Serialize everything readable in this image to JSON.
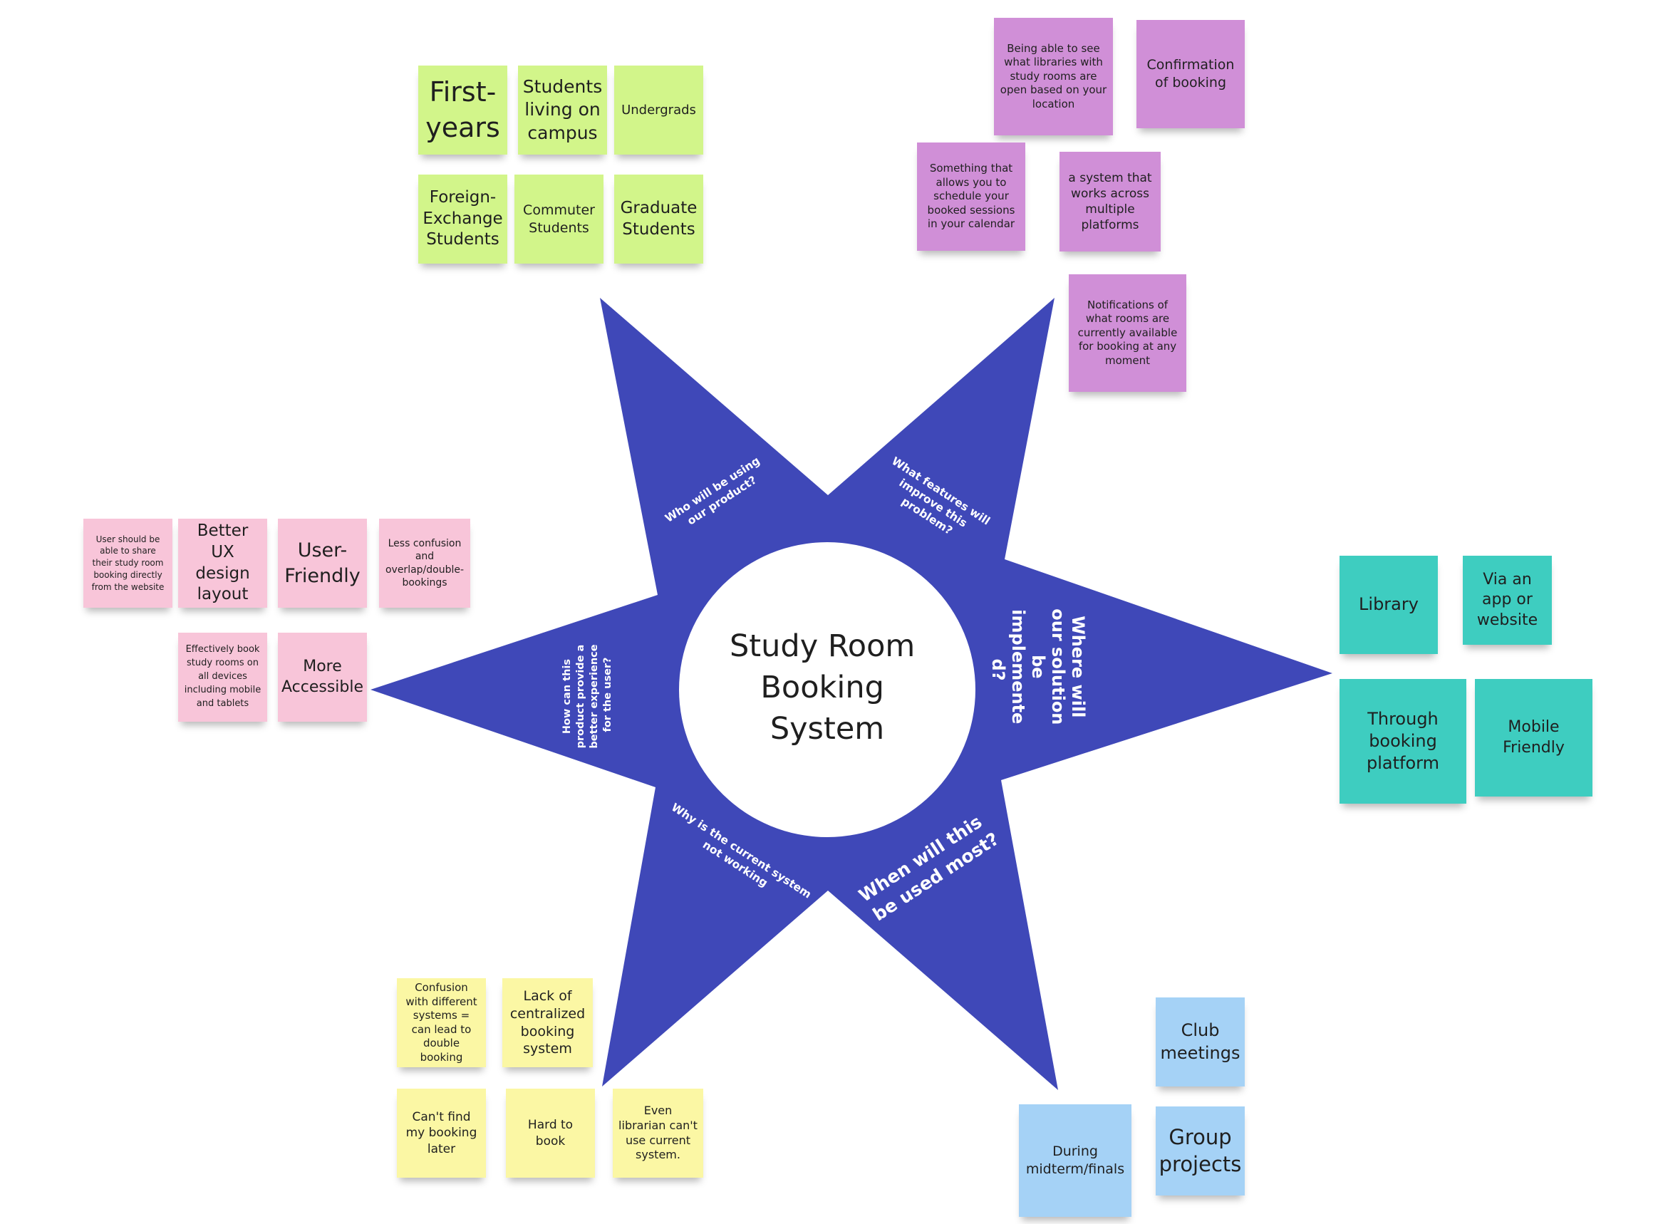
{
  "diagram": {
    "center_title": [
      "Study Room",
      "Booking",
      "System"
    ],
    "star_color": "#3f48b8",
    "questions": {
      "who": [
        "Who  will be using",
        "our product?"
      ],
      "what": [
        "What features will",
        "improve this",
        "problem?"
      ],
      "where": [
        "Where will",
        "our solution",
        "be",
        "implemente",
        "d?"
      ],
      "when": [
        "When will this",
        "be used most?"
      ],
      "why": [
        "Why is the current system",
        "not working"
      ],
      "how": [
        "How can this",
        "product provide a",
        "better experience",
        "for the user?"
      ]
    }
  },
  "notes": {
    "who": {
      "color": "#d2f58a",
      "items": [
        "First-years",
        "Students living on campus",
        "Undergrads",
        "Foreign-Exchange Students",
        "Commuter Students",
        "Graduate Students"
      ]
    },
    "what": {
      "color": "#d08fd7",
      "items": [
        "Being able to see what libraries with study rooms are open based on your location",
        "Confirmation of booking",
        "Something that allows you to schedule your booked sessions in your calendar",
        "a system that works across multiple platforms",
        "Notifications of what rooms are currently available for booking at any moment"
      ]
    },
    "how": {
      "color": "#f8c5d9",
      "items": [
        "User should be able to share their study room booking directly from the website",
        "Better UX design layout",
        "User-Friendly",
        "Less confusion and overlap/double-bookings",
        "Effectively book study rooms on all devices including mobile and tablets",
        "More Accessible"
      ]
    },
    "where": {
      "color": "#3ecdc0",
      "items": [
        "Library",
        "Via an app or website",
        "Through booking platform",
        "Mobile Friendly"
      ]
    },
    "why": {
      "color": "#fbf7a4",
      "items": [
        "Confusion with different systems = can lead to double booking",
        "Lack of centralized booking system",
        "Can't find my booking later",
        "Hard to book",
        "Even librarian can't use current system."
      ]
    },
    "when": {
      "color": "#a5d2f6",
      "items": [
        "Club meetings",
        "During midterm/finals",
        "Group projects"
      ]
    }
  }
}
